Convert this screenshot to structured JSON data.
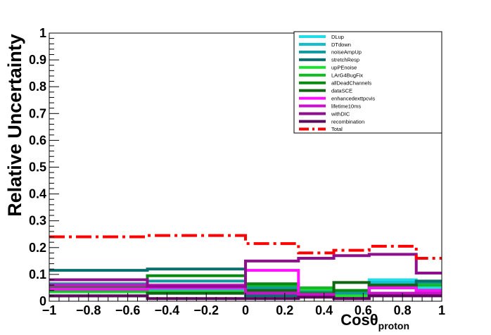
{
  "chart_data": {
    "type": "step",
    "title": "",
    "xlabel": "Cosθ",
    "xlabel_subscript": "proton",
    "ylabel": "Relative Uncertainty",
    "xlim": [
      -1,
      1
    ],
    "ylim": [
      0,
      1
    ],
    "bin_edges": [
      -1,
      -0.5,
      0,
      0.27,
      0.45,
      0.63,
      0.87,
      1
    ],
    "x_tick_labels": [
      "−1",
      "−0.8",
      "−0.6",
      "−0.4",
      "−0.2",
      "0",
      "0.2",
      "0.4",
      "0.6",
      "0.8",
      "1"
    ],
    "y_tick_labels": [
      "0",
      "0.1",
      "0.2",
      "0.3",
      "0.4",
      "0.5",
      "0.6",
      "0.7",
      "0.8",
      "0.9",
      "1"
    ],
    "legend_position": "top-right",
    "series": [
      {
        "name": "DLup",
        "color": "#22dde8",
        "dashed": false,
        "values": [
          0.035,
          0.03,
          0.03,
          0.03,
          0.03,
          0.08,
          0.05
        ]
      },
      {
        "name": "DTdown",
        "color": "#11bfcf",
        "dashed": false,
        "values": [
          0.05,
          0.04,
          0.035,
          0.03,
          0.03,
          0.07,
          0.04
        ]
      },
      {
        "name": "noiseAmpUp",
        "color": "#0e9a9e",
        "dashed": false,
        "values": [
          0.065,
          0.075,
          0.05,
          0.04,
          0.03,
          0.06,
          0.07
        ]
      },
      {
        "name": "stretchResp",
        "color": "#0b6e6e",
        "dashed": false,
        "values": [
          0.115,
          0.12,
          0.02,
          0.02,
          0.02,
          0.05,
          0.075
        ]
      },
      {
        "name": "upPEnoise",
        "color": "#22dd33",
        "dashed": false,
        "values": [
          0.035,
          0.035,
          0.06,
          0.045,
          0.02,
          0.03,
          0.04
        ]
      },
      {
        "name": "LArG4BugFix",
        "color": "#11bb22",
        "dashed": false,
        "values": [
          0.04,
          0.03,
          0.06,
          0.05,
          0.04,
          0.05,
          0.06
        ]
      },
      {
        "name": "allDeadChannels",
        "color": "#0a8a12",
        "dashed": false,
        "values": [
          0.055,
          0.095,
          0.065,
          0.03,
          0.04,
          0.06,
          0.04
        ]
      },
      {
        "name": "dataSCE",
        "color": "#116611",
        "dashed": false,
        "values": [
          0.02,
          0.03,
          0.04,
          0.02,
          0.07,
          0.06,
          0.03
        ]
      },
      {
        "name": "enhancedexttpcvis",
        "color": "#ff11ff",
        "dashed": false,
        "values": [
          0.045,
          0.05,
          0.115,
          0.02,
          0.01,
          0.05,
          0.04
        ]
      },
      {
        "name": "lifetime10ms",
        "color": "#cc11cc",
        "dashed": false,
        "values": [
          0.06,
          0.06,
          0.03,
          0.025,
          0.01,
          0.03,
          0.03
        ]
      },
      {
        "name": "withDIC",
        "color": "#8e0e8e",
        "dashed": false,
        "values": [
          0.08,
          0.055,
          0.15,
          0.16,
          0.17,
          0.175,
          0.105
        ]
      },
      {
        "name": "recombination",
        "color": "#5c0a5c",
        "dashed": false,
        "values": [
          0.02,
          0.01,
          0.01,
          0.015,
          0.01,
          0.02,
          0.02
        ]
      },
      {
        "name": "Total",
        "color": "#ff0000",
        "dashed": true,
        "values": [
          0.24,
          0.245,
          0.215,
          0.18,
          0.19,
          0.205,
          0.16
        ]
      }
    ]
  }
}
